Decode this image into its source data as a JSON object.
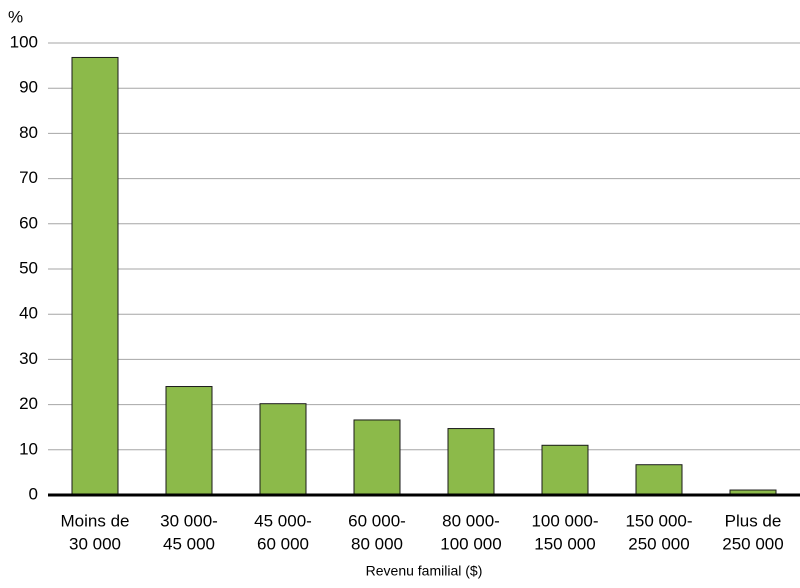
{
  "chart_data": {
    "type": "bar",
    "y_label": "%",
    "x_label": "Revenu familial ($)",
    "categories": [
      [
        "Moins de",
        "30 000"
      ],
      [
        "30 000-",
        "45 000"
      ],
      [
        "45 000-",
        "60 000"
      ],
      [
        "60 000-",
        "80 000"
      ],
      [
        "80 000-",
        "100 000"
      ],
      [
        "100 000-",
        "150 000"
      ],
      [
        "150 000-",
        "250 000"
      ],
      [
        "Plus de",
        "250 000"
      ]
    ],
    "values": [
      96.8,
      24,
      20.2,
      16.6,
      14.7,
      11,
      6.7,
      1.1
    ],
    "color": "#8cba4a",
    "ylim": [
      0,
      100
    ],
    "yticks": [
      0,
      10,
      20,
      30,
      40,
      50,
      60,
      70,
      80,
      90,
      100
    ],
    "grid": true
  }
}
